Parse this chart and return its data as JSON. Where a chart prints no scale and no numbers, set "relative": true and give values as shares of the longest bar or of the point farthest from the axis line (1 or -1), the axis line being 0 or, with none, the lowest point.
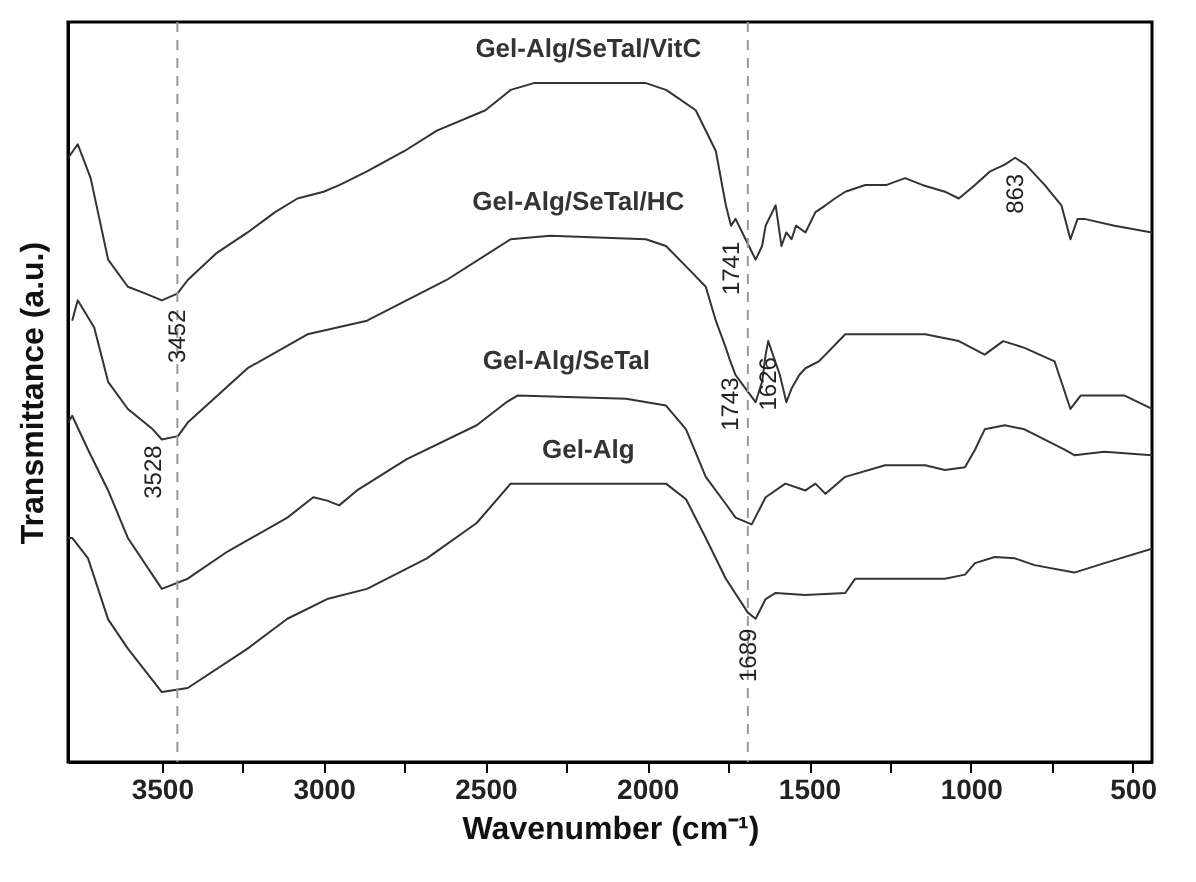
{
  "chart_data": {
    "type": "line",
    "relative": true,
    "xlabel": "Wavenumber (cm⁻¹)",
    "ylabel": "Transmittance (a.u.)",
    "xlim": [
      3790,
      440
    ],
    "xticks": [
      3500,
      {
        "value": 3250,
        "label": null
      },
      3000,
      {
        "value": 2750,
        "label": null
      },
      2500,
      {
        "value": 2250,
        "label": null
      },
      2000,
      {
        "value": 1750,
        "label": null
      },
      1500,
      {
        "value": 1250,
        "label": null
      },
      1000,
      {
        "value": 750,
        "label": null
      },
      500
    ],
    "series": [
      {
        "name": "Gel-Alg/SeTal/VitC",
        "color": "#333333",
        "x": [
          3789,
          3760,
          3720,
          3666,
          3605,
          3550,
          3500,
          3452,
          3420,
          3330,
          3235,
          3150,
          3081,
          3000,
          2950,
          2866,
          2750,
          2650,
          2500,
          2422,
          2350,
          2200,
          2004,
          1942,
          1911,
          1850,
          1788,
          1757,
          1741,
          1727,
          1696,
          1665,
          1645,
          1634,
          1603,
          1585,
          1570,
          1554,
          1540,
          1511,
          1480,
          1449,
          1420,
          1388,
          1326,
          1260,
          1203,
          1150,
          1080,
          1037,
          987,
          940,
          895,
          863,
          830,
          772,
          720,
          692,
          670,
          649,
          556,
          440
        ],
        "values": [
          0.89,
          0.91,
          0.86,
          0.74,
          0.7,
          0.69,
          0.68,
          0.69,
          0.71,
          0.75,
          0.78,
          0.81,
          0.83,
          0.84,
          0.85,
          0.87,
          0.9,
          0.93,
          0.96,
          0.99,
          1,
          1,
          1,
          0.99,
          0.98,
          0.96,
          0.9,
          0.82,
          0.79,
          0.8,
          0.77,
          0.74,
          0.76,
          0.79,
          0.82,
          0.76,
          0.78,
          0.77,
          0.79,
          0.78,
          0.81,
          0.82,
          0.83,
          0.84,
          0.85,
          0.85,
          0.86,
          0.85,
          0.84,
          0.83,
          0.85,
          0.87,
          0.88,
          0.89,
          0.88,
          0.85,
          0.82,
          0.77,
          0.8,
          0.8,
          0.79,
          0.78
        ]
      },
      {
        "name": "Gel-Alg/SeTal/HC",
        "color": "#333333",
        "x": [
          3777,
          3760,
          3709,
          3666,
          3605,
          3528,
          3500,
          3450,
          3420,
          3235,
          3050,
          2866,
          2620,
          2422,
          2300,
          2004,
          1942,
          1880,
          1819,
          1788,
          1757,
          1743,
          1727,
          1696,
          1665,
          1645,
          1634,
          1626,
          1590,
          1570,
          1554,
          1530,
          1511,
          1470,
          1449,
          1388,
          1326,
          1265,
          1141,
          1037,
          957,
          900,
          834,
          741,
          692,
          660,
          526,
          440
        ],
        "values": [
          0.65,
          0.68,
          0.64,
          0.56,
          0.52,
          0.49,
          0.475,
          0.48,
          0.5,
          0.58,
          0.63,
          0.65,
          0.71,
          0.77,
          0.775,
          0.77,
          0.76,
          0.73,
          0.7,
          0.65,
          0.61,
          0.59,
          0.57,
          0.55,
          0.53,
          0.56,
          0.6,
          0.62,
          0.57,
          0.53,
          0.55,
          0.57,
          0.58,
          0.59,
          0.6,
          0.63,
          0.63,
          0.63,
          0.63,
          0.62,
          0.6,
          0.62,
          0.61,
          0.59,
          0.52,
          0.54,
          0.54,
          0.52
        ]
      },
      {
        "name": "Gel-Alg/SeTal",
        "color": "#333333",
        "x": [
          3789,
          3777,
          3728,
          3666,
          3605,
          3500,
          3420,
          3297,
          3112,
          3032,
          2989,
          2952,
          2897,
          2743,
          2527,
          2435,
          2400,
          2065,
          1942,
          1880,
          1819,
          1757,
          1727,
          1677,
          1634,
          1573,
          1511,
          1480,
          1449,
          1388,
          1265,
          1141,
          1080,
          1018,
          987,
          957,
          895,
          834,
          710,
          680,
          587,
          440
        ],
        "values": [
          0.5,
          0.51,
          0.46,
          0.4,
          0.33,
          0.255,
          0.27,
          0.31,
          0.36,
          0.39,
          0.385,
          0.378,
          0.4,
          0.446,
          0.496,
          0.53,
          0.54,
          0.535,
          0.525,
          0.49,
          0.42,
          0.38,
          0.36,
          0.35,
          0.39,
          0.41,
          0.4,
          0.41,
          0.395,
          0.42,
          0.437,
          0.437,
          0.43,
          0.434,
          0.46,
          0.49,
          0.496,
          0.49,
          0.46,
          0.452,
          0.457,
          0.452
        ]
      },
      {
        "name": "Gel-Alg",
        "color": "#333333",
        "x": [
          3789,
          3777,
          3728,
          3666,
          3605,
          3500,
          3420,
          3235,
          3112,
          2989,
          2866,
          2681,
          2527,
          2422,
          2350,
          1942,
          1880,
          1819,
          1757,
          1689,
          1665,
          1634,
          1603,
          1511,
          1388,
          1357,
          1080,
          1018,
          987,
          926,
          864,
          803,
          680,
          587,
          440
        ],
        "values": [
          0.33,
          0.33,
          0.3,
          0.21,
          0.167,
          0.103,
          0.109,
          0.167,
          0.211,
          0.24,
          0.255,
          0.3,
          0.352,
          0.41,
          0.41,
          0.41,
          0.387,
          0.33,
          0.27,
          0.22,
          0.211,
          0.24,
          0.249,
          0.246,
          0.249,
          0.27,
          0.27,
          0.276,
          0.293,
          0.302,
          0.3,
          0.29,
          0.279,
          0.293,
          0.314
        ]
      }
    ],
    "ref_lines": [
      {
        "axis": "x",
        "value": 3452,
        "line_style": "dashed",
        "color": "#999999"
      },
      {
        "axis": "x",
        "value": 1689,
        "line_style": "dashed",
        "color": "#999999"
      }
    ],
    "annotations": [
      {
        "text": "3452",
        "x": 3452,
        "y": 0.69
      },
      {
        "text": "3528",
        "x": 3528,
        "y": 0.49
      },
      {
        "text": "1741",
        "x": 1741,
        "y": 0.79
      },
      {
        "text": "1743",
        "x": 1743,
        "y": 0.59
      },
      {
        "text": "1626",
        "x": 1626,
        "y": 0.62
      },
      {
        "text": "863",
        "x": 863,
        "y": 0.89
      },
      {
        "text": "1689",
        "x": 1689,
        "y": 0.22
      }
    ]
  }
}
